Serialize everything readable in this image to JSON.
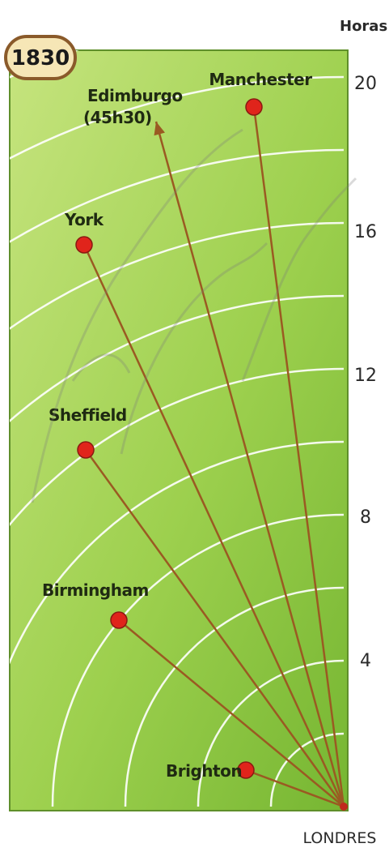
{
  "year_badge": "1830",
  "scale": {
    "title": "Horas",
    "ticks": [
      "20",
      "16",
      "12",
      "8",
      "4"
    ]
  },
  "origin": "LONDRES",
  "cities": [
    {
      "name": "Manchester"
    },
    {
      "name": "Edimburgo",
      "note": "(45h30)"
    },
    {
      "name": "York"
    },
    {
      "name": "Sheffield"
    },
    {
      "name": "Birmingham"
    },
    {
      "name": "Brighton"
    }
  ],
  "colors": {
    "background_light": "#c3e27a",
    "background_dark": "#7fbd3a",
    "arc": "#ffffff",
    "route": "#9a5a22",
    "city_dot": "#e0241b",
    "badge_fill": "#f6e6b6",
    "badge_stroke": "#8a5a2a"
  }
}
